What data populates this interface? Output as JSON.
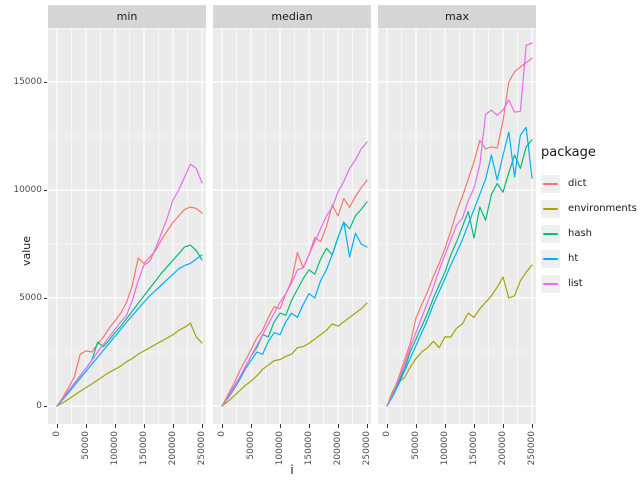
{
  "figure": {
    "y_axis": {
      "title": "value",
      "ticks": [
        "0",
        "5000",
        "10000",
        "15000"
      ]
    },
    "x_axis": {
      "title": "i",
      "ticks": [
        "0",
        "50000",
        "100000",
        "150000",
        "200000",
        "250000"
      ]
    },
    "legend": {
      "title": "package",
      "items": [
        {
          "label": "dict",
          "color": "#F8766D"
        },
        {
          "label": "environments",
          "color": "#A3A500"
        },
        {
          "label": "hash",
          "color": "#00BF7D"
        },
        {
          "label": "ht",
          "color": "#00B0F6"
        },
        {
          "label": "list",
          "color": "#E76BF3"
        }
      ]
    }
  },
  "chart_data": {
    "type": "line",
    "title": "",
    "xlabel": "i",
    "ylabel": "value",
    "xlim": [
      0,
      250000
    ],
    "ylim": [
      0,
      17500
    ],
    "grid": "on",
    "legend_position": "right",
    "panel_bg": "#EBEBEB",
    "strip_bg": "#D6D6D6",
    "colors": {
      "dict": "#F8766D",
      "environments": "#A3A500",
      "hash": "#00BF7D",
      "ht": "#00B0F6",
      "list": "#E76BF3"
    },
    "x": [
      0,
      10000,
      20000,
      30000,
      40000,
      50000,
      60000,
      70000,
      80000,
      90000,
      100000,
      110000,
      120000,
      130000,
      140000,
      150000,
      160000,
      170000,
      180000,
      190000,
      200000,
      210000,
      220000,
      230000,
      240000,
      250000
    ],
    "facets": [
      {
        "label": "min",
        "series": [
          {
            "name": "dict",
            "values": [
              0,
              400,
              850,
              1350,
              2400,
              2550,
              2500,
              2850,
              3200,
              3600,
              3950,
              4300,
              4800,
              5600,
              6850,
              6600,
              6900,
              7200,
              7700,
              8100,
              8500,
              8800,
              9100,
              9215,
              9150,
              8930
            ]
          },
          {
            "name": "environments",
            "values": [
              0,
              150,
              320,
              500,
              680,
              850,
              1020,
              1200,
              1380,
              1560,
              1700,
              1850,
              2050,
              2200,
              2400,
              2550,
              2700,
              2850,
              3000,
              3150,
              3300,
              3500,
              3650,
              3840,
              3200,
              2915
            ]
          },
          {
            "name": "hash",
            "values": [
              0,
              350,
              700,
              1050,
              1400,
              1750,
              2100,
              2960,
              2750,
              3050,
              3400,
              3700,
              4050,
              4400,
              4750,
              5100,
              5450,
              5800,
              6150,
              6450,
              6750,
              7050,
              7365,
              7450,
              7200,
              6760
            ]
          },
          {
            "name": "ht",
            "values": [
              0,
              300,
              620,
              950,
              1280,
              1600,
              1930,
              2250,
              2580,
              2900,
              3230,
              3550,
              3880,
              4200,
              4500,
              4815,
              5100,
              5350,
              5600,
              5850,
              6100,
              6350,
              6500,
              6600,
              6800,
              6990
            ]
          },
          {
            "name": "list",
            "values": [
              0,
              350,
              700,
              1050,
              1400,
              1750,
              2100,
              2500,
              2850,
              3200,
              3550,
              3900,
              4210,
              4900,
              5800,
              6530,
              6700,
              7300,
              8000,
              8700,
              9540,
              10000,
              10600,
              11200,
              11000,
              10330
            ]
          }
        ]
      },
      {
        "label": "median",
        "series": [
          {
            "name": "dict",
            "values": [
              0,
              500,
              1000,
              1600,
              2100,
              2600,
              3150,
              3500,
              4100,
              4600,
              4500,
              5200,
              5800,
              7100,
              6400,
              7000,
              7800,
              7600,
              8300,
              9300,
              8800,
              9600,
              9200,
              9700,
              10100,
              10460
            ]
          },
          {
            "name": "environments",
            "values": [
              0,
              200,
              450,
              700,
              950,
              1150,
              1400,
              1700,
              1900,
              2100,
              2150,
              2300,
              2400,
              2700,
              2750,
              2900,
              3100,
              3300,
              3500,
              3800,
              3700,
              3900,
              4100,
              4300,
              4500,
              4770
            ]
          },
          {
            "name": "hash",
            "values": [
              0,
              400,
              850,
              1300,
              1800,
              2300,
              2700,
              3300,
              3200,
              3900,
              4300,
              4200,
              4900,
              5400,
              5900,
              6300,
              6100,
              6800,
              7300,
              7000,
              7800,
              8500,
              8200,
              8800,
              9100,
              9450
            ]
          },
          {
            "name": "ht",
            "values": [
              0,
              350,
              750,
              1200,
              1700,
              2100,
              2500,
              2400,
              3000,
              3400,
              3300,
              3900,
              4300,
              4100,
              4700,
              5200,
              5000,
              5800,
              6300,
              7000,
              7800,
              8520,
              6900,
              8000,
              7500,
              7360
            ]
          },
          {
            "name": "list",
            "values": [
              0,
              400,
              800,
              1300,
              1800,
              2300,
              2800,
              3300,
              3800,
              4300,
              4800,
              5200,
              5700,
              6300,
              6400,
              7000,
              7600,
              8200,
              8800,
              9200,
              9900,
              10400,
              11000,
              11400,
              11900,
              12220
            ]
          }
        ]
      },
      {
        "label": "max",
        "series": [
          {
            "name": "dict",
            "values": [
              0,
              600,
              1300,
              2100,
              2900,
              4075,
              4700,
              5300,
              6000,
              6600,
              7300,
              8100,
              8980,
              9700,
              10500,
              11300,
              12300,
              11900,
              12000,
              11940,
              13200,
              15000,
              15470,
              15700,
              15900,
              16100
            ]
          },
          {
            "name": "environments",
            "values": [
              0,
              700,
              1100,
              1300,
              1800,
              2200,
              2500,
              2700,
              3000,
              2700,
              3200,
              3195,
              3600,
              3800,
              4300,
              4100,
              4500,
              4800,
              5100,
              5500,
              5970,
              5000,
              5100,
              5800,
              6200,
              6530
            ]
          },
          {
            "name": "hash",
            "values": [
              0,
              500,
              1100,
              1700,
              2500,
              3100,
              3700,
              4300,
              5000,
              5600,
              6200,
              6990,
              7600,
              8300,
              9000,
              7780,
              9215,
              8600,
              9800,
              10300,
              9900,
              10800,
              11620,
              11000,
              12000,
              12320
            ]
          },
          {
            "name": "ht",
            "values": [
              0,
              450,
              1000,
              1600,
              2200,
              2800,
              3400,
              4000,
              4700,
              5300,
              5900,
              6530,
              7100,
              7700,
              8400,
              9100,
              9800,
              10500,
              11620,
              10460,
              11600,
              12680,
              10600,
              12540,
              12900,
              10550
            ]
          },
          {
            "name": "list",
            "values": [
              0,
              550,
              1200,
              1900,
              2700,
              3400,
              4100,
              4800,
              5500,
              6300,
              7000,
              7700,
              8380,
              8700,
              9500,
              10090,
              11160,
              13500,
              13700,
              13460,
              13700,
              14170,
              13600,
              13650,
              16700,
              16800
            ]
          }
        ]
      }
    ]
  }
}
